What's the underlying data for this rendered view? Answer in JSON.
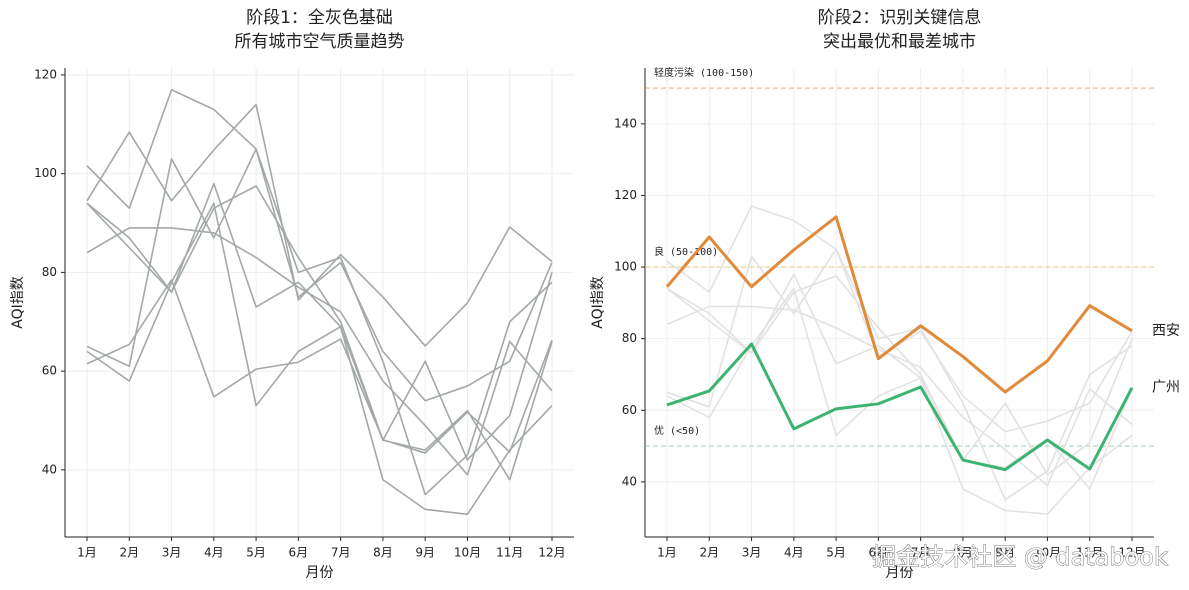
{
  "chart_data": [
    {
      "type": "line",
      "title": [
        "阶段1：全灰色基础",
        "所有城市空气质量趋势"
      ],
      "xlabel": "月份",
      "ylabel": "AQI指数",
      "categories": [
        "1月",
        "2月",
        "3月",
        "4月",
        "5月",
        "6月",
        "7月",
        "8月",
        "9月",
        "10月",
        "11月",
        "12月"
      ],
      "ylim": [
        26.4,
        121.4
      ],
      "yticks": [
        40,
        60,
        80,
        100,
        120
      ],
      "grid": true,
      "series": [
        {
          "color": "#a3a8a8",
          "values": [
            94.5,
            108.4,
            94.5,
            104.8,
            114,
            74.4,
            83.6,
            75,
            65.1,
            73.8,
            89.2,
            82.2
          ]
        },
        {
          "color": "#a3a8a8",
          "values": [
            61.5,
            65.4,
            78.5,
            54.8,
            60.4,
            61.8,
            66.5,
            46.1,
            43.4,
            51.7,
            43.6,
            66.3
          ]
        },
        {
          "color": "#a3a8a8",
          "values": [
            101.6,
            93,
            117,
            113,
            105,
            75,
            82,
            64,
            54,
            57,
            62,
            82
          ]
        },
        {
          "color": "#a3a8a8",
          "values": [
            84,
            89,
            89,
            88,
            83,
            77,
            72,
            58,
            49,
            39,
            66,
            56
          ]
        },
        {
          "color": "#a3a8a8",
          "values": [
            94,
            85,
            76,
            98,
            73,
            78,
            69,
            46,
            62,
            42,
            51,
            80
          ]
        },
        {
          "color": "#a3a8a8",
          "values": [
            65,
            61,
            103,
            87,
            105,
            80,
            83,
            62,
            35,
            43,
            70,
            78
          ]
        },
        {
          "color": "#a3a8a8",
          "values": [
            64,
            58,
            78,
            94,
            53,
            64,
            69,
            38,
            32,
            31,
            44,
            53
          ]
        },
        {
          "color": "#a3a8a8",
          "values": [
            94,
            87,
            76,
            93,
            97.5,
            83,
            70,
            46,
            44,
            52,
            38,
            66
          ]
        }
      ]
    },
    {
      "type": "line",
      "title": [
        "阶段2：识别关键信息",
        "突出最优和最差城市"
      ],
      "xlabel": "月份",
      "ylabel": "AQI指数",
      "categories": [
        "1月",
        "2月",
        "3月",
        "4月",
        "5月",
        "6月",
        "7月",
        "8月",
        "9月",
        "10月",
        "11月",
        "12月"
      ],
      "ylim": [
        24.6,
        155.6
      ],
      "yticks": [
        40,
        60,
        80,
        100,
        120,
        140
      ],
      "grid": true,
      "reference_lines": [
        {
          "value": 150,
          "label": "轻度污染 (100-150)",
          "color": "#e8913d"
        },
        {
          "value": 100,
          "label": "良 (50-100)",
          "color": "#f2c14e"
        },
        {
          "value": 50,
          "label": "优 (<50)",
          "color": "#6fcf97"
        }
      ],
      "series": [
        {
          "color": "#e2e2e2",
          "values": [
            101.6,
            93,
            117,
            113,
            105,
            75,
            82,
            64,
            54,
            57,
            62,
            82
          ]
        },
        {
          "color": "#e2e2e2",
          "values": [
            84,
            89,
            89,
            88,
            83,
            77,
            72,
            58,
            49,
            39,
            66,
            56
          ]
        },
        {
          "color": "#e2e2e2",
          "values": [
            94,
            85,
            76,
            98,
            73,
            78,
            69,
            46,
            62,
            42,
            51,
            80
          ]
        },
        {
          "color": "#e2e2e2",
          "values": [
            65,
            61,
            103,
            87,
            105,
            80,
            83,
            62,
            35,
            43,
            70,
            78
          ]
        },
        {
          "color": "#e2e2e2",
          "values": [
            64,
            58,
            78,
            94,
            53,
            64,
            69,
            38,
            32,
            31,
            44,
            53
          ]
        },
        {
          "color": "#e2e2e2",
          "values": [
            94,
            87,
            76,
            93,
            97.5,
            83,
            70,
            46,
            44,
            52,
            38,
            66
          ]
        },
        {
          "name": "西安",
          "color": "#e08a3a",
          "values": [
            94.5,
            108.4,
            94.5,
            104.8,
            114,
            74.4,
            83.6,
            75,
            65.1,
            73.8,
            89.2,
            82.2
          ]
        },
        {
          "name": "广州",
          "color": "#3cb371",
          "values": [
            61.5,
            65.4,
            78.5,
            54.8,
            60.4,
            61.8,
            66.5,
            46.1,
            43.4,
            51.7,
            43.6,
            66.3
          ]
        }
      ]
    }
  ],
  "watermark": "掘金技术社区 @ databook"
}
